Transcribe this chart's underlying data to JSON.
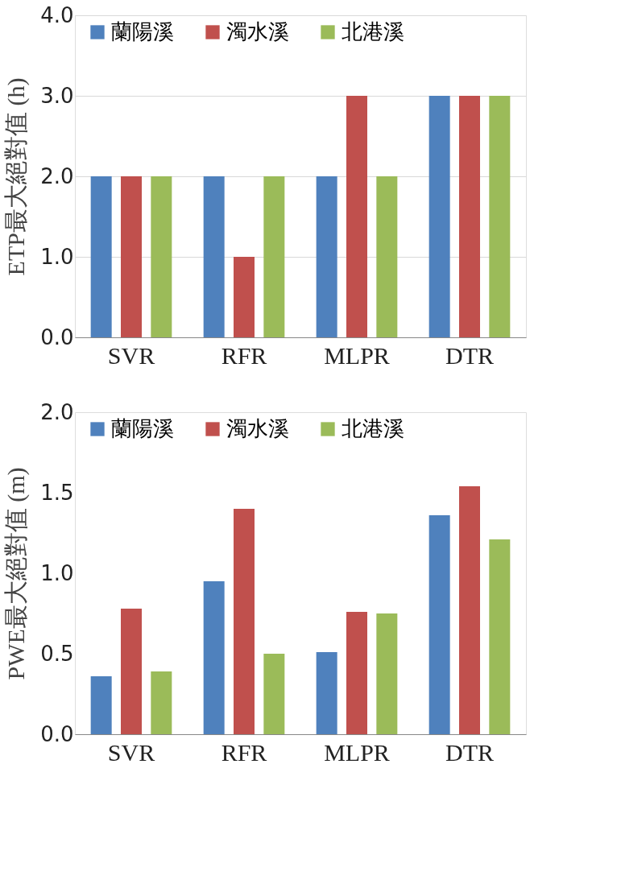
{
  "chart_data": [
    {
      "type": "bar",
      "ylabel": "ETP最大絕對值 (h)",
      "categories": [
        "SVR",
        "RFR",
        "MLPR",
        "DTR"
      ],
      "series": [
        {
          "name": "蘭陽溪",
          "color": "#4f81bd",
          "values": [
            2,
            2,
            2,
            3
          ]
        },
        {
          "name": "濁水溪",
          "color": "#c0504d",
          "values": [
            2,
            1,
            3,
            3
          ]
        },
        {
          "name": "北港溪",
          "color": "#9bbb59",
          "values": [
            2,
            2,
            2,
            3
          ]
        }
      ],
      "ylim": [
        0,
        4
      ],
      "yticks": [
        {
          "value": 0,
          "label": "0.0"
        },
        {
          "value": 1,
          "label": "1.0"
        },
        {
          "value": 2,
          "label": "2.0"
        },
        {
          "value": 3,
          "label": "3.0"
        },
        {
          "value": 4,
          "label": "4.0"
        }
      ],
      "grid": "y",
      "legend": "top"
    },
    {
      "type": "bar",
      "ylabel": "PWE最大絕對值 (m)",
      "categories": [
        "SVR",
        "RFR",
        "MLPR",
        "DTR"
      ],
      "series": [
        {
          "name": "蘭陽溪",
          "color": "#4f81bd",
          "values": [
            0.36,
            0.95,
            0.51,
            1.36
          ]
        },
        {
          "name": "濁水溪",
          "color": "#c0504d",
          "values": [
            0.78,
            1.4,
            0.76,
            1.54
          ]
        },
        {
          "name": "北港溪",
          "color": "#9bbb59",
          "values": [
            0.39,
            0.5,
            0.75,
            1.21
          ]
        }
      ],
      "ylim": [
        0,
        2
      ],
      "yticks": [
        {
          "value": 0,
          "label": "0.0"
        },
        {
          "value": 0.5,
          "label": "0.5"
        },
        {
          "value": 1,
          "label": "1.0"
        },
        {
          "value": 1.5,
          "label": "1.5"
        },
        {
          "value": 2,
          "label": "2.0"
        }
      ],
      "legend": "top"
    }
  ]
}
